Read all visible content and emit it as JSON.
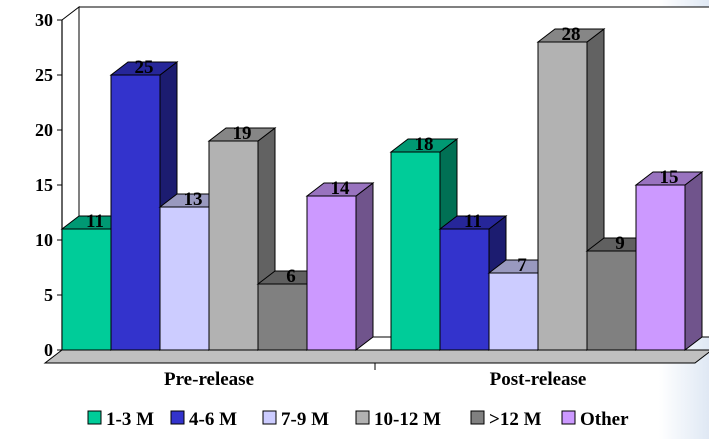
{
  "chart_data": {
    "type": "bar",
    "categories": [
      "Pre-release",
      "Post-release"
    ],
    "series": [
      {
        "name": "1-3 M",
        "values": [
          11,
          18
        ],
        "color": "#00cc99"
      },
      {
        "name": "4-6 M",
        "values": [
          25,
          11
        ],
        "color": "#3333cc"
      },
      {
        "name": "7-9 M",
        "values": [
          13,
          7
        ],
        "color": "#ccccff"
      },
      {
        "name": "10-12 M",
        "values": [
          19,
          28
        ],
        "color": "#b2b2b2"
      },
      {
        "name": ">12 M",
        "values": [
          6,
          9
        ],
        "color": "#808080"
      },
      {
        "name": "Other",
        "values": [
          14,
          15
        ],
        "color": "#cc99ff"
      }
    ],
    "yticks": [
      0,
      5,
      10,
      15,
      20,
      25,
      30
    ],
    "ylim": [
      0,
      30
    ],
    "grid": false,
    "legend_position": "bottom",
    "style": "3d-clustered-bar"
  }
}
